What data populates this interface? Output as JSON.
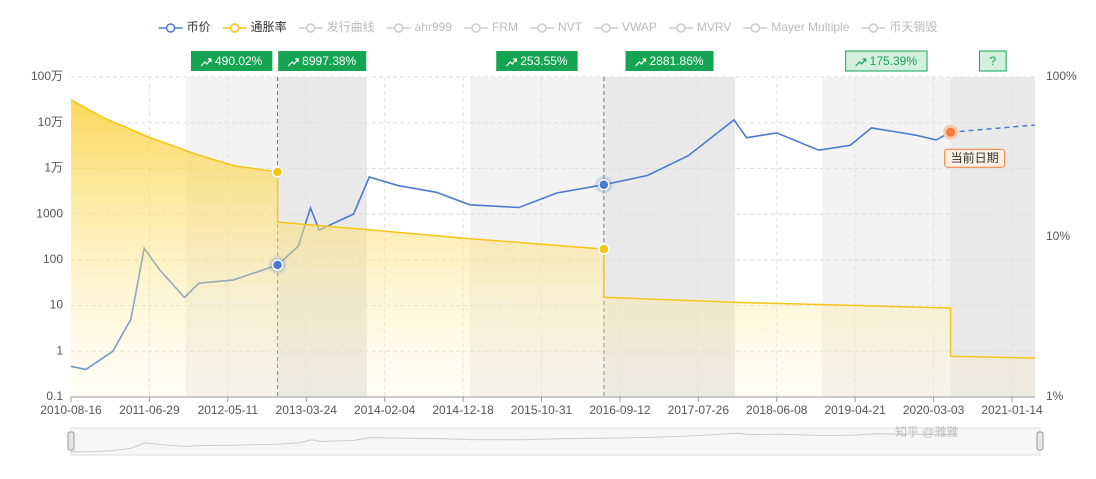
{
  "chart_data": {
    "type": "line",
    "xlim": [
      "2010-08-16",
      "2021-04-17"
    ],
    "xticks": [
      "2010-08-16",
      "2011-06-29",
      "2012-05-11",
      "2013-03-24",
      "2014-02-04",
      "2014-12-18",
      "2015-10-31",
      "2016-09-12",
      "2017-07-26",
      "2018-06-08",
      "2019-04-21",
      "2020-03-03",
      "2021-01-14"
    ],
    "log_scale": true,
    "grid": true,
    "ylim": [
      0.1,
      1000000
    ],
    "yticks": [
      0.1,
      1,
      10,
      100,
      1000,
      {
        "value": 10000,
        "label": "1万"
      },
      {
        "value": 100000,
        "label": "10万"
      },
      {
        "value": 1000000,
        "label": "100万"
      }
    ],
    "y2lim": [
      1,
      100
    ],
    "y2ticks": [
      {
        "value": 1,
        "label": "1%"
      },
      {
        "value": 10,
        "label": "10%"
      },
      {
        "value": 100,
        "label": "100%"
      }
    ],
    "series": [
      {
        "name": "币价",
        "color": "#4a7bd0",
        "x": [
          "2010-08-16",
          "2010-10-15",
          "2011-02-01",
          "2011-04-15",
          "2011-06-08",
          "2011-08-10",
          "2011-11-18",
          "2012-01-15",
          "2012-06-01",
          "2012-11-28",
          "2013-02-20",
          "2013-04-10",
          "2013-05-15",
          "2013-10-01",
          "2013-12-04",
          "2014-04-01",
          "2014-09-01",
          "2015-01-14",
          "2015-08-01",
          "2016-01-01",
          "2016-07-09",
          "2017-01-01",
          "2017-06-15",
          "2017-12-17",
          "2018-02-06",
          "2018-06-08",
          "2018-11-25",
          "2019-04-01",
          "2019-06-26",
          "2019-12-17",
          "2020-03-13",
          "2020-05-11"
        ],
        "values": [
          0.47,
          0.4,
          1.0,
          5,
          180,
          60,
          15,
          31,
          36,
          77,
          200,
          1370,
          450,
          1000,
          6500,
          4200,
          3000,
          1600,
          1400,
          2900,
          4400,
          7000,
          19000,
          115000,
          47000,
          60000,
          25000,
          32000,
          77000,
          54000,
          42000,
          62000
        ]
      },
      {
        "name": "通胀率",
        "color": "#f5c518",
        "axis": "y2",
        "x": [
          "2010-08-16",
          "2011-01-01",
          "2011-06-29",
          "2012-01-01",
          "2012-06-01",
          "2012-11-28",
          "2012-11-28",
          "2014-01-01",
          "2015-01-01",
          "2016-07-09",
          "2016-07-09",
          "2018-01-01",
          "2020-05-11",
          "2020-05-11",
          "2021-04-17"
        ],
        "values": [
          72,
          55,
          42,
          33,
          28,
          25.5,
          12.4,
          11,
          9.8,
          8.4,
          4.2,
          3.9,
          3.6,
          1.8,
          1.75
        ]
      }
    ],
    "hidden_series": [
      "发行曲线",
      "ahr999",
      "FRM",
      "NVT",
      "VWAP",
      "MVRV",
      "Mayer Multiple",
      "币天销毁"
    ],
    "forecast": {
      "x": [
        "2020-05-11",
        "2021-04-17"
      ],
      "values": [
        62000,
        89000
      ]
    },
    "events": [
      "2012-11-28",
      "2016-07-09"
    ],
    "current_date": {
      "x": "2020-05-11",
      "label": "当前日期"
    },
    "bands": [
      {
        "start": "2011-11-23",
        "end": "2012-11-28",
        "value": 490.02,
        "label": "490.02%"
      },
      {
        "start": "2012-11-28",
        "end": "2013-11-24",
        "value": 8997.38,
        "label": "8997.38%"
      },
      {
        "start": "2015-01-15",
        "end": "2016-07-09",
        "value": 253.55,
        "label": "253.55%"
      },
      {
        "start": "2016-07-09",
        "end": "2017-12-22",
        "value": 2881.86,
        "label": "2881.86%"
      },
      {
        "start": "2018-12-08",
        "end": "2020-05-11",
        "value": 175.39,
        "label": "175.39%"
      },
      {
        "start": "2020-05-11",
        "end": "2021-04-17",
        "label": "?"
      }
    ],
    "watermark": "知乎 @雅雅"
  }
}
